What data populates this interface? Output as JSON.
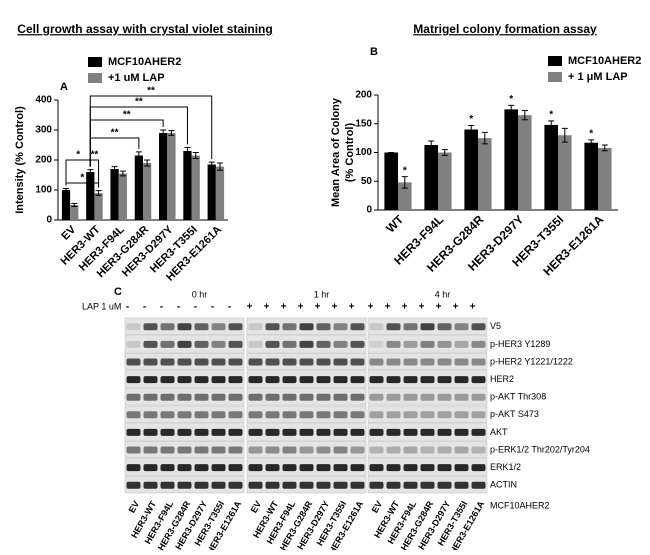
{
  "chart_data": [
    {
      "type": "bar",
      "title": "Cell growth assay with crystal violet staining",
      "panel": "A",
      "ylabel": "Intensity (% Control)",
      "categories": [
        "EV",
        "HER3-WT",
        "HER3-F94L",
        "HER3-G284R",
        "HER3-D297Y",
        "HER3-T355I",
        "HER3-E1261A"
      ],
      "series": [
        {
          "name": "MCF10AHER2",
          "color": "#000000",
          "values": [
            100,
            160,
            170,
            215,
            290,
            230,
            185
          ],
          "errors": [
            5,
            8,
            8,
            12,
            10,
            12,
            8
          ]
        },
        {
          "name": "+1 uM LAP",
          "color": "#808080",
          "values": [
            50,
            90,
            155,
            190,
            290,
            215,
            178
          ],
          "errors": [
            5,
            8,
            8,
            10,
            8,
            10,
            12
          ]
        }
      ],
      "ylim": [
        0,
        400
      ],
      "yticks": [
        0,
        100,
        200,
        300,
        400
      ],
      "significance": [
        "*",
        "*",
        "**",
        "**",
        "**",
        "**",
        "**"
      ]
    },
    {
      "type": "bar",
      "title": "Matrigel colony formation assay",
      "panel": "B",
      "ylabel": [
        "Mean Area of Colony",
        "(% Control)"
      ],
      "categories": [
        "WT",
        "HER3-F94L",
        "HER3-G284R",
        "HER3-D297Y",
        "HER3-T355I",
        "HER3-E1261A"
      ],
      "series": [
        {
          "name": "MCF10AHER2",
          "color": "#000000",
          "values": [
            100,
            113,
            140,
            175,
            148,
            117
          ],
          "errors": [
            0,
            7,
            7,
            7,
            7,
            5
          ]
        },
        {
          "name": "+ 1 μM LAP",
          "color": "#808080",
          "values": [
            48,
            100,
            125,
            165,
            130,
            108
          ],
          "errors": [
            10,
            5,
            10,
            8,
            12,
            5
          ]
        }
      ],
      "ylim": [
        0,
        200
      ],
      "yticks": [
        0,
        50,
        100,
        150,
        200
      ],
      "significance": [
        "*",
        "*",
        "*",
        "*",
        "*"
      ]
    }
  ],
  "blot": {
    "panel": "C",
    "treatment_label": "LAP 1 uM",
    "times": [
      "0 hr",
      "1 hr",
      "4 hr"
    ],
    "treatment": [
      "-",
      "-",
      "-",
      "-",
      "-",
      "-",
      "-",
      "+",
      "+",
      "+",
      "+",
      "+",
      "+",
      "+",
      "+",
      "+",
      "+",
      "+",
      "+",
      "+",
      "+"
    ],
    "proteins": [
      "V5",
      "p-HER3 Y1289",
      "p-HER2 Y1221/1222",
      "HER2",
      "p-AKT Thr308",
      "p-AKT S473",
      "AKT",
      "p-ERK1/2 Thr202/Tyr204",
      "ERK1/2",
      "ACTIN"
    ],
    "lanes": [
      "EV",
      "HER3-WT",
      "HER3-F94L",
      "HER3-G284R",
      "HER3-D297Y",
      "HER3-T355I",
      "HER3-E1261A",
      "EV",
      "HER3-WT",
      "HER3-F94L",
      "HER3-G284R",
      "HER3-D297Y",
      "HER3-T355I",
      "HER3-E1261A",
      "EV",
      "HER3-WT",
      "HER3-F94L",
      "HER3-G284R",
      "HER3-D297Y",
      "HER3-T355I",
      "HER3-E1261A"
    ],
    "cell_line": "MCF10AHER2"
  }
}
